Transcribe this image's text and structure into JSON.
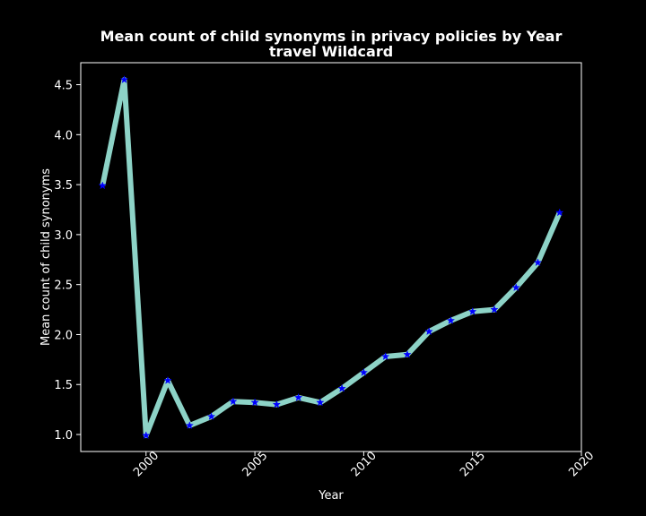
{
  "chart_data": {
    "type": "line",
    "title_line1": "Mean count of child synonyms in privacy policies by Year",
    "title_line2": "travel Wildcard",
    "xlabel": "Year",
    "ylabel": "Mean count of child synonyms",
    "xlim": [
      1997,
      2020
    ],
    "ylim": [
      0.83,
      4.72
    ],
    "xticks": [
      2000,
      2005,
      2010,
      2015,
      2020
    ],
    "yticks": [
      1.0,
      1.5,
      2.0,
      2.5,
      3.0,
      3.5,
      4.0,
      4.5
    ],
    "ytick_labels": [
      "1.0",
      "1.5",
      "2.0",
      "2.5",
      "3.0",
      "3.5",
      "4.0",
      "4.5"
    ],
    "series": [
      {
        "name": "mean",
        "line_color": "#8dd3c7",
        "marker_color": "#0000ff",
        "marker": "star",
        "x": [
          1998,
          1999,
          2000,
          2001,
          2002,
          2003,
          2004,
          2005,
          2006,
          2007,
          2008,
          2009,
          2010,
          2011,
          2012,
          2013,
          2014,
          2015,
          2016,
          2017,
          2018,
          2019
        ],
        "values": [
          3.49,
          4.55,
          0.99,
          1.54,
          1.09,
          1.18,
          1.33,
          1.32,
          1.3,
          1.37,
          1.32,
          1.46,
          1.62,
          1.78,
          1.8,
          2.03,
          2.14,
          2.23,
          2.25,
          2.47,
          2.72,
          3.22
        ]
      }
    ]
  }
}
